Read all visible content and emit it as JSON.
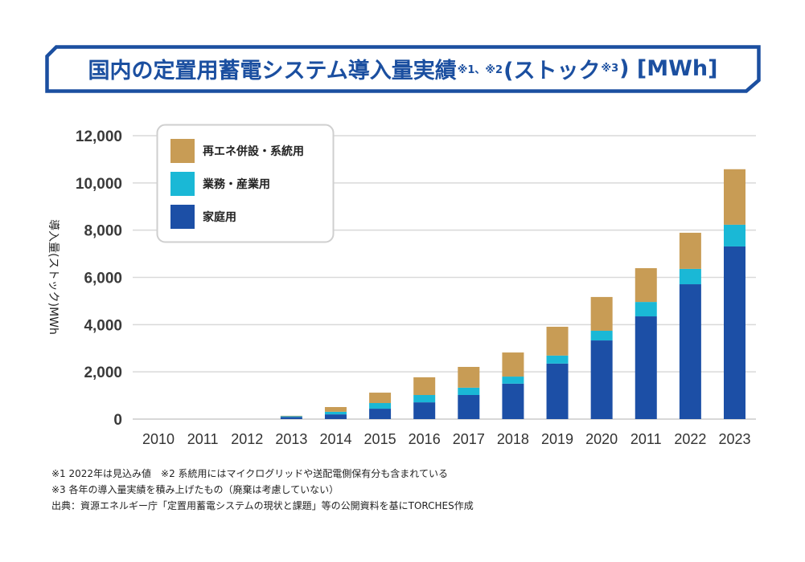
{
  "title": {
    "main": "国内の定置用蓄電システム導入量実績",
    "note_ref_1": "※1、※2",
    "paren_open": "(ストック",
    "note_ref_2": "※3",
    "paren_close": ")",
    "unit": "[MWh]"
  },
  "colors": {
    "title": "#1b4fa0",
    "renewable": "#c89c55",
    "commercial": "#1ab8d6",
    "residential": "#1c4fa6",
    "grid": "#d9d9d9"
  },
  "chart_data": {
    "type": "bar",
    "stacked": true,
    "title": "国内の定置用蓄電システム導入量実績※1、※2(ストック※3) [MWh]",
    "xlabel": "",
    "ylabel": "導入量(ストック)MWh",
    "ylim": [
      0,
      12000
    ],
    "yticks": [
      0,
      2000,
      4000,
      6000,
      8000,
      10000,
      12000
    ],
    "ytick_labels": [
      "0",
      "2,000",
      "4,000",
      "6,000",
      "8,000",
      "10,000",
      "12,000"
    ],
    "grid": true,
    "legend_position": "top-left",
    "categories": [
      "2010",
      "2011",
      "2012",
      "2013",
      "2014",
      "2015",
      "2016",
      "2017",
      "2018",
      "2019",
      "2020",
      "2011",
      "2022",
      "2023"
    ],
    "series": [
      {
        "name": "家庭用",
        "color_key": "residential",
        "values": [
          0,
          0,
          0,
          90,
          200,
          440,
          710,
          1020,
          1500,
          2350,
          3330,
          4350,
          5710,
          7310
        ]
      },
      {
        "name": "業務・産業用",
        "color_key": "commercial",
        "values": [
          0,
          0,
          0,
          30,
          110,
          240,
          310,
          310,
          300,
          340,
          410,
          610,
          650,
          920
        ]
      },
      {
        "name": "再エネ併設・系統用",
        "color_key": "renewable",
        "values": [
          0,
          0,
          0,
          20,
          200,
          440,
          750,
          880,
          1020,
          1220,
          1430,
          1430,
          1530,
          2350
        ]
      }
    ],
    "legend": [
      "再エネ併設・系統用",
      "業務・産業用",
      "家庭用"
    ]
  },
  "notes": [
    "※1 2022年は見込み値　※2 系統用にはマイクログリッドや送配電側保有分も含まれている",
    "※3 各年の導入量実績を積み上げたもの（廃棄は考慮していない）",
    "出典：資源エネルギー庁「定置用蓄電システムの現状と課題」等の公開資料を基にTORCHES作成"
  ]
}
